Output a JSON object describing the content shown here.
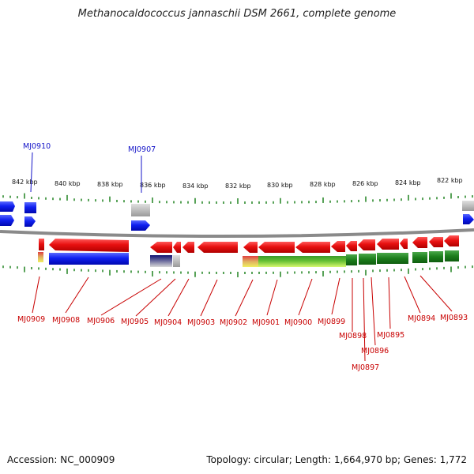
{
  "title": "Methanocaldococcus jannaschii DSM 2661, complete genome",
  "footer": {
    "accession": "Accession: NC_000909",
    "summary": "Topology: circular; Length: 1,664,970 bp; Genes: 1,772"
  },
  "colors": {
    "forward_gene": "#1020e8",
    "reverse_gene": "#e01010",
    "tick": "#2e8b2e",
    "backbone": "#8a8a8a",
    "label_top": "#1414c8",
    "label_bottom": "#c80000"
  },
  "scale": {
    "kbp_labels": [
      "842 kbp",
      "840 kbp",
      "838 kbp",
      "836 kbp",
      "834 kbp",
      "832 kbp",
      "830 kbp",
      "828 kbp",
      "826 kbp",
      "824 kbp",
      "822 kbp"
    ]
  },
  "top_labels": [
    "MJ0910",
    "MJ0907"
  ],
  "bottom_labels": [
    "MJ0909",
    "MJ0908",
    "MJ0906",
    "MJ0905",
    "MJ0904",
    "MJ0903",
    "MJ0902",
    "MJ0901",
    "MJ0900",
    "MJ0899",
    "MJ0898",
    "MJ0897",
    "MJ0896",
    "MJ0895",
    "MJ0894",
    "MJ0893"
  ]
}
